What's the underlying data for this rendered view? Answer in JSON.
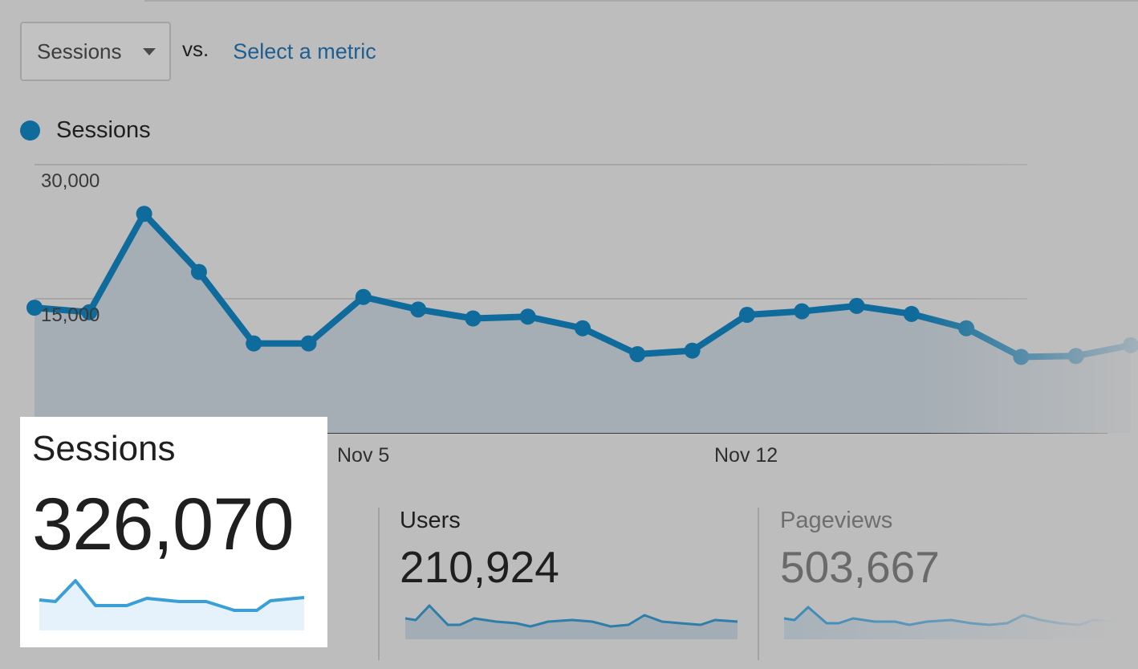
{
  "toolbar": {
    "metric_select_label": "Sessions",
    "vs_label": "vs.",
    "secondary_metric_link": "Select a metric"
  },
  "legend": {
    "label": "Sessions",
    "color": "#0f6b9b"
  },
  "chart_data": {
    "type": "line",
    "series": [
      {
        "name": "Sessions",
        "values": [
          14000,
          13500,
          24500,
          18000,
          10000,
          10000,
          15200,
          13800,
          12800,
          13000,
          11700,
          8800,
          9200,
          13200,
          13600,
          14200,
          13300,
          11700,
          8500,
          8600,
          9800
        ]
      }
    ],
    "x_tick_labels": [
      "Nov 5",
      "Nov 12"
    ],
    "y_tick_labels": [
      "30,000",
      "15,000"
    ],
    "ylim": [
      0,
      30000
    ],
    "grid": true,
    "area_fill": true
  },
  "scorecards": {
    "sessions": {
      "label": "Sessions",
      "value": "326,070"
    },
    "users": {
      "label": "Users",
      "value": "210,924"
    },
    "pageviews": {
      "label": "Pageviews",
      "value": "503,667"
    }
  },
  "colors": {
    "line": "#0f6b9b",
    "sparkline": "#3a9fd6",
    "link": "#1f5e91"
  }
}
